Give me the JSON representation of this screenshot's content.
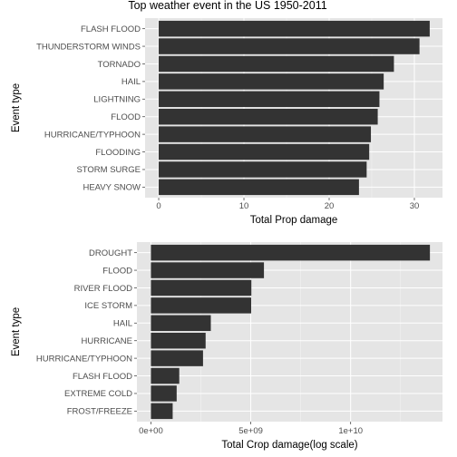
{
  "title": "Top weather event in the US 1950-2011",
  "chart_data": [
    {
      "type": "bar",
      "orientation": "horizontal",
      "xlabel": "Total Prop damage",
      "ylabel": "Event type",
      "xlim": [
        -1.6,
        33.3
      ],
      "xticks": [
        0,
        10,
        20,
        30
      ],
      "xtick_labels": [
        "0",
        "10",
        "20",
        "30"
      ],
      "grid": true,
      "categories": [
        "FLASH FLOOD",
        "THUNDERSTORM WINDS",
        "TORNADO",
        "HAIL",
        "LIGHTNING",
        "FLOOD",
        "HURRICANE/TYPHOON",
        "FLOODING",
        "STORM SURGE",
        "HEAVY SNOW"
      ],
      "values": [
        31.8,
        30.6,
        27.6,
        26.4,
        25.9,
        25.7,
        24.9,
        24.7,
        24.4,
        23.5
      ]
    },
    {
      "type": "bar",
      "orientation": "horizontal",
      "xlabel": "Total Crop damage(log scale)",
      "ylabel": "Event type",
      "xlim": [
        -700000000,
        14600000000
      ],
      "xticks": [
        0,
        5000000000,
        10000000000
      ],
      "xtick_labels": [
        "0e+00",
        "5e+09",
        "1e+10"
      ],
      "grid": true,
      "categories": [
        "DROUGHT",
        "FLOOD",
        "RIVER FLOOD",
        "ICE STORM",
        "HAIL",
        "HURRICANE",
        "HURRICANE/TYPHOON",
        "FLASH FLOOD",
        "EXTREME COLD",
        "FROST/FREEZE"
      ],
      "values": [
        13970000000,
        5660000000,
        5030000000,
        5020000000,
        3000000000,
        2740000000,
        2610000000,
        1420000000,
        1290000000,
        1090000000
      ]
    }
  ]
}
